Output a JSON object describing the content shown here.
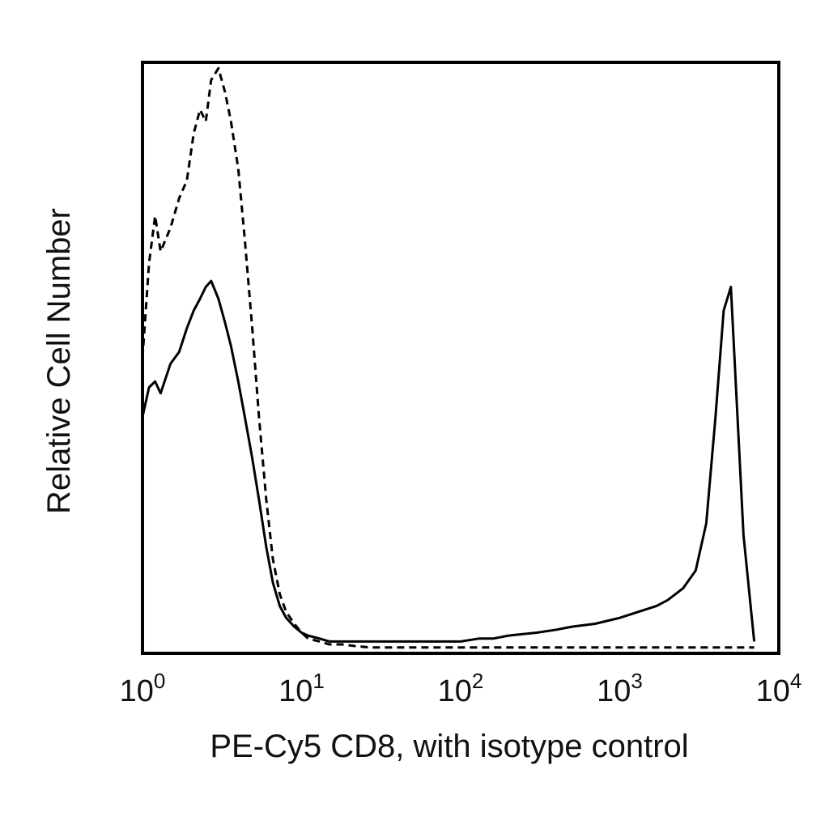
{
  "chart_data": {
    "type": "line",
    "title": "",
    "xlabel": "PE-Cy5 CD8, with isotype control",
    "ylabel": "Relative Cell Number",
    "x_scale": "log",
    "xlim": [
      1,
      10000
    ],
    "ylim": [
      0,
      100
    ],
    "x_ticks": [
      {
        "value": 1,
        "base": "10",
        "exp": "0"
      },
      {
        "value": 10,
        "base": "10",
        "exp": "1"
      },
      {
        "value": 100,
        "base": "10",
        "exp": "2"
      },
      {
        "value": 1000,
        "base": "10",
        "exp": "3"
      },
      {
        "value": 10000,
        "base": "10",
        "exp": "4"
      }
    ],
    "y_ticks": [],
    "grid": false,
    "legend": "none",
    "series": [
      {
        "style": "dashed",
        "x": [
          1.0,
          1.1,
          1.2,
          1.3,
          1.5,
          1.7,
          1.9,
          2.1,
          2.3,
          2.5,
          2.7,
          3.0,
          3.3,
          3.6,
          4.0,
          4.4,
          4.9,
          5.4,
          6.0,
          6.6,
          7.3,
          8.0,
          9.0,
          10,
          11,
          13,
          15,
          18,
          22,
          27,
          33,
          40,
          50,
          60,
          80,
          100,
          130,
          160,
          200,
          300,
          400,
          500,
          700,
          1000,
          1300,
          1700,
          2000,
          2500,
          3000,
          3500,
          4000,
          4500,
          5000,
          6000,
          7000
        ],
        "y": [
          50,
          66,
          74,
          68,
          72,
          77,
          80,
          88,
          92,
          90,
          97,
          99,
          95,
          90,
          82,
          70,
          55,
          40,
          26,
          16,
          10,
          7,
          5,
          3.5,
          2.5,
          2,
          1.5,
          1.5,
          1.2,
          1,
          1,
          1,
          1,
          1,
          1,
          1,
          1,
          1,
          1,
          1,
          1,
          1,
          1,
          1,
          1,
          1,
          1,
          1,
          1,
          1,
          1,
          1,
          1,
          1,
          1
        ]
      },
      {
        "style": "solid",
        "x": [
          1.0,
          1.1,
          1.2,
          1.3,
          1.5,
          1.7,
          1.9,
          2.1,
          2.3,
          2.5,
          2.7,
          3.0,
          3.3,
          3.6,
          4.0,
          4.4,
          4.9,
          5.4,
          6.0,
          6.6,
          7.3,
          8.0,
          9.0,
          10,
          11,
          13,
          15,
          18,
          22,
          27,
          33,
          40,
          50,
          60,
          80,
          100,
          130,
          160,
          200,
          300,
          400,
          500,
          700,
          1000,
          1300,
          1700,
          2000,
          2500,
          3000,
          3500,
          4000,
          4500,
          5000,
          6000,
          7000
        ],
        "y": [
          40,
          45,
          46,
          44,
          49,
          51,
          55,
          58,
          60,
          62,
          63,
          60,
          56,
          52,
          46,
          40,
          33,
          26,
          18,
          12,
          8,
          6,
          4.5,
          3.5,
          3,
          2.5,
          2,
          2,
          2,
          2,
          2,
          2,
          2,
          2,
          2,
          2,
          2.5,
          2.5,
          3,
          3.5,
          4,
          4.5,
          5,
          6,
          7,
          8,
          9,
          11,
          14,
          22,
          40,
          58,
          62,
          20,
          2
        ]
      }
    ]
  }
}
